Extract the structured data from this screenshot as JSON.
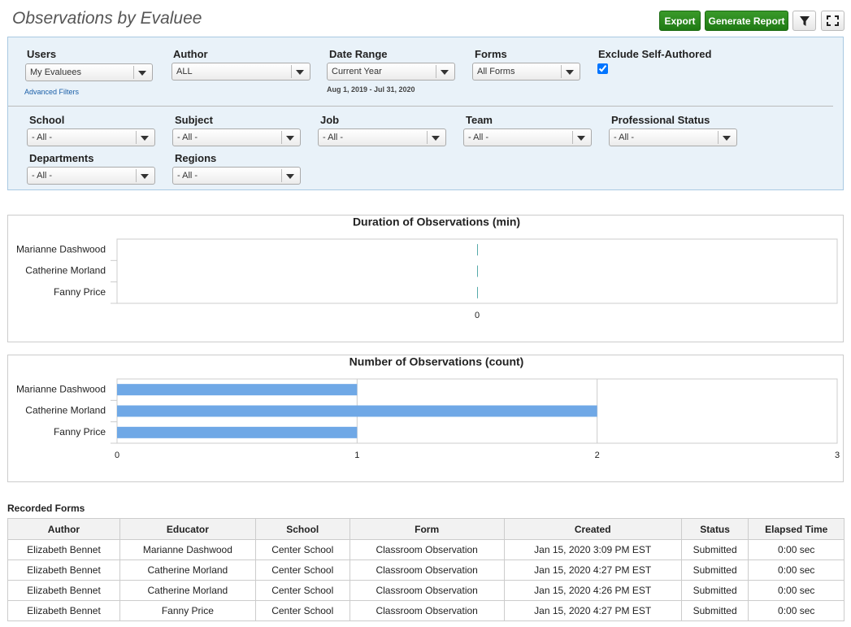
{
  "header": {
    "title": "Observations by Evaluee",
    "buttons": [
      "Export",
      "Generate Report"
    ]
  },
  "filters": {
    "row1": [
      {
        "label": "Users",
        "value": "My Evaluees",
        "link": "Advanced Filters"
      },
      {
        "label": "Author",
        "value": "ALL"
      },
      {
        "label": "Date Range",
        "value": "Current Year",
        "note": "Aug 1, 2019 - Jul 31, 2020"
      },
      {
        "label": "Forms",
        "value": "All Forms"
      },
      {
        "label": "Exclude Self-Authored",
        "checked": true
      }
    ],
    "row2": [
      {
        "label": "School",
        "value": "- All -"
      },
      {
        "label": "Subject",
        "value": "- All -"
      },
      {
        "label": "Job",
        "value": "- All -"
      },
      {
        "label": "Team",
        "value": "- All -"
      },
      {
        "label": "Professional Status",
        "value": "- All -"
      }
    ],
    "row3": [
      {
        "label": "Departments",
        "value": "- All -"
      },
      {
        "label": "Regions",
        "value": "- All -"
      }
    ]
  },
  "chart_data": [
    {
      "type": "bar",
      "orientation": "horizontal",
      "title": "Duration of Observations (min)",
      "categories": [
        "Marianne Dashwood",
        "Catherine Morland",
        "Fanny Price"
      ],
      "values": [
        0,
        0,
        0
      ],
      "color": "#6fa8e6",
      "xlim": [
        -1,
        1
      ],
      "xticks": [
        0
      ],
      "grid": false
    },
    {
      "type": "bar",
      "orientation": "horizontal",
      "title": "Number of Observations (count)",
      "categories": [
        "Marianne Dashwood",
        "Catherine Morland",
        "Fanny Price"
      ],
      "values": [
        1,
        2,
        1
      ],
      "color": "#6fa8e6",
      "xlim": [
        0,
        3
      ],
      "xticks": [
        0,
        1,
        2,
        3
      ],
      "grid": true
    }
  ],
  "table": {
    "title": "Recorded Forms",
    "columns": [
      "Author",
      "Educator",
      "School",
      "Form",
      "Created",
      "Status",
      "Elapsed Time"
    ],
    "rows": [
      [
        "Elizabeth Bennet",
        "Marianne Dashwood",
        "Center School",
        "Classroom Observation",
        "Jan 15, 2020 3:09 PM EST",
        "Submitted",
        "0:00 sec"
      ],
      [
        "Elizabeth Bennet",
        "Catherine Morland",
        "Center School",
        "Classroom Observation",
        "Jan 15, 2020 4:27 PM EST",
        "Submitted",
        "0:00 sec"
      ],
      [
        "Elizabeth Bennet",
        "Catherine Morland",
        "Center School",
        "Classroom Observation",
        "Jan 15, 2020 4:26 PM EST",
        "Submitted",
        "0:00 sec"
      ],
      [
        "Elizabeth Bennet",
        "Fanny Price",
        "Center School",
        "Classroom Observation",
        "Jan 15, 2020 4:27 PM EST",
        "Submitted",
        "0:00 sec"
      ]
    ]
  }
}
